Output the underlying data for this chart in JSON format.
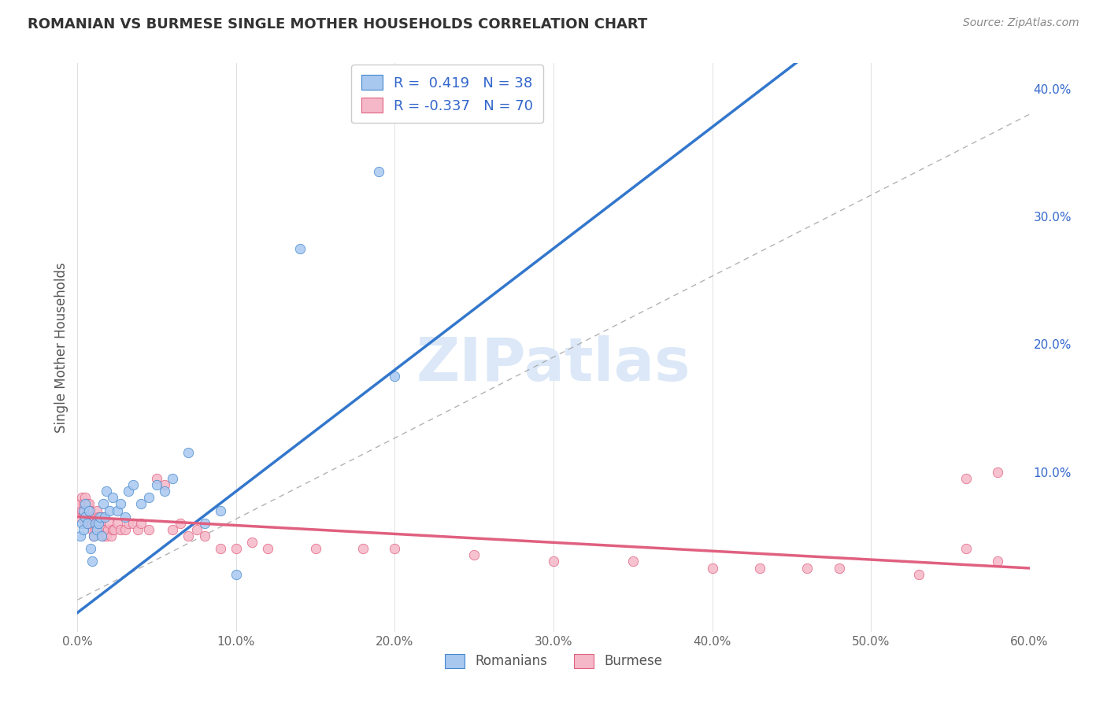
{
  "title": "ROMANIAN VS BURMESE SINGLE MOTHER HOUSEHOLDS CORRELATION CHART",
  "source": "Source: ZipAtlas.com",
  "ylabel": "Single Mother Households",
  "xlim": [
    0,
    0.6
  ],
  "ylim": [
    -0.025,
    0.42
  ],
  "romanian_color": "#a8c8f0",
  "burmese_color": "#f5b8c8",
  "romanian_edge_color": "#4488cc",
  "burmese_edge_color": "#e06080",
  "romanian_line_color": "#3377cc",
  "burmese_line_color": "#e06080",
  "dashed_line_color": "#aaaaaa",
  "legend_text_color": "#3366cc",
  "title_color": "#333333",
  "watermark_color": "#dce8f8",
  "legend_r_romanian": "R =  0.419",
  "legend_n_romanian": "N = 38",
  "legend_r_burmese": "R = -0.337",
  "legend_n_burmese": "N = 70",
  "romanian_x": [
    0.002,
    0.003,
    0.004,
    0.004,
    0.005,
    0.005,
    0.006,
    0.007,
    0.008,
    0.009,
    0.01,
    0.011,
    0.012,
    0.013,
    0.014,
    0.015,
    0.016,
    0.017,
    0.018,
    0.02,
    0.022,
    0.025,
    0.027,
    0.03,
    0.032,
    0.035,
    0.04,
    0.045,
    0.05,
    0.055,
    0.06,
    0.07,
    0.08,
    0.09,
    0.1,
    0.14,
    0.19,
    0.2
  ],
  "romanian_y": [
    0.05,
    0.06,
    0.07,
    0.055,
    0.065,
    0.075,
    0.06,
    0.07,
    0.04,
    0.03,
    0.05,
    0.06,
    0.055,
    0.06,
    0.065,
    0.05,
    0.075,
    0.065,
    0.085,
    0.07,
    0.08,
    0.07,
    0.075,
    0.065,
    0.085,
    0.09,
    0.075,
    0.08,
    0.09,
    0.085,
    0.095,
    0.115,
    0.06,
    0.07,
    0.02,
    0.275,
    0.335,
    0.175
  ],
  "burmese_x": [
    0.002,
    0.002,
    0.003,
    0.003,
    0.004,
    0.004,
    0.005,
    0.005,
    0.005,
    0.006,
    0.006,
    0.007,
    0.007,
    0.008,
    0.008,
    0.009,
    0.009,
    0.01,
    0.01,
    0.011,
    0.011,
    0.012,
    0.012,
    0.013,
    0.013,
    0.014,
    0.015,
    0.015,
    0.016,
    0.017,
    0.018,
    0.019,
    0.02,
    0.021,
    0.022,
    0.023,
    0.025,
    0.027,
    0.03,
    0.032,
    0.035,
    0.038,
    0.04,
    0.045,
    0.05,
    0.055,
    0.06,
    0.065,
    0.07,
    0.075,
    0.08,
    0.09,
    0.1,
    0.11,
    0.12,
    0.15,
    0.18,
    0.2,
    0.25,
    0.3,
    0.35,
    0.4,
    0.43,
    0.46,
    0.48,
    0.53,
    0.56,
    0.58,
    0.56,
    0.58
  ],
  "burmese_y": [
    0.065,
    0.075,
    0.07,
    0.08,
    0.068,
    0.075,
    0.06,
    0.065,
    0.08,
    0.07,
    0.075,
    0.065,
    0.075,
    0.065,
    0.07,
    0.055,
    0.06,
    0.05,
    0.065,
    0.055,
    0.06,
    0.06,
    0.07,
    0.06,
    0.065,
    0.06,
    0.055,
    0.065,
    0.05,
    0.055,
    0.05,
    0.055,
    0.06,
    0.05,
    0.055,
    0.055,
    0.06,
    0.055,
    0.055,
    0.06,
    0.06,
    0.055,
    0.06,
    0.055,
    0.095,
    0.09,
    0.055,
    0.06,
    0.05,
    0.055,
    0.05,
    0.04,
    0.04,
    0.045,
    0.04,
    0.04,
    0.04,
    0.04,
    0.035,
    0.03,
    0.03,
    0.025,
    0.025,
    0.025,
    0.025,
    0.02,
    0.04,
    0.03,
    0.095,
    0.1
  ],
  "background_color": "#ffffff",
  "grid_color": "#e0e0e0"
}
